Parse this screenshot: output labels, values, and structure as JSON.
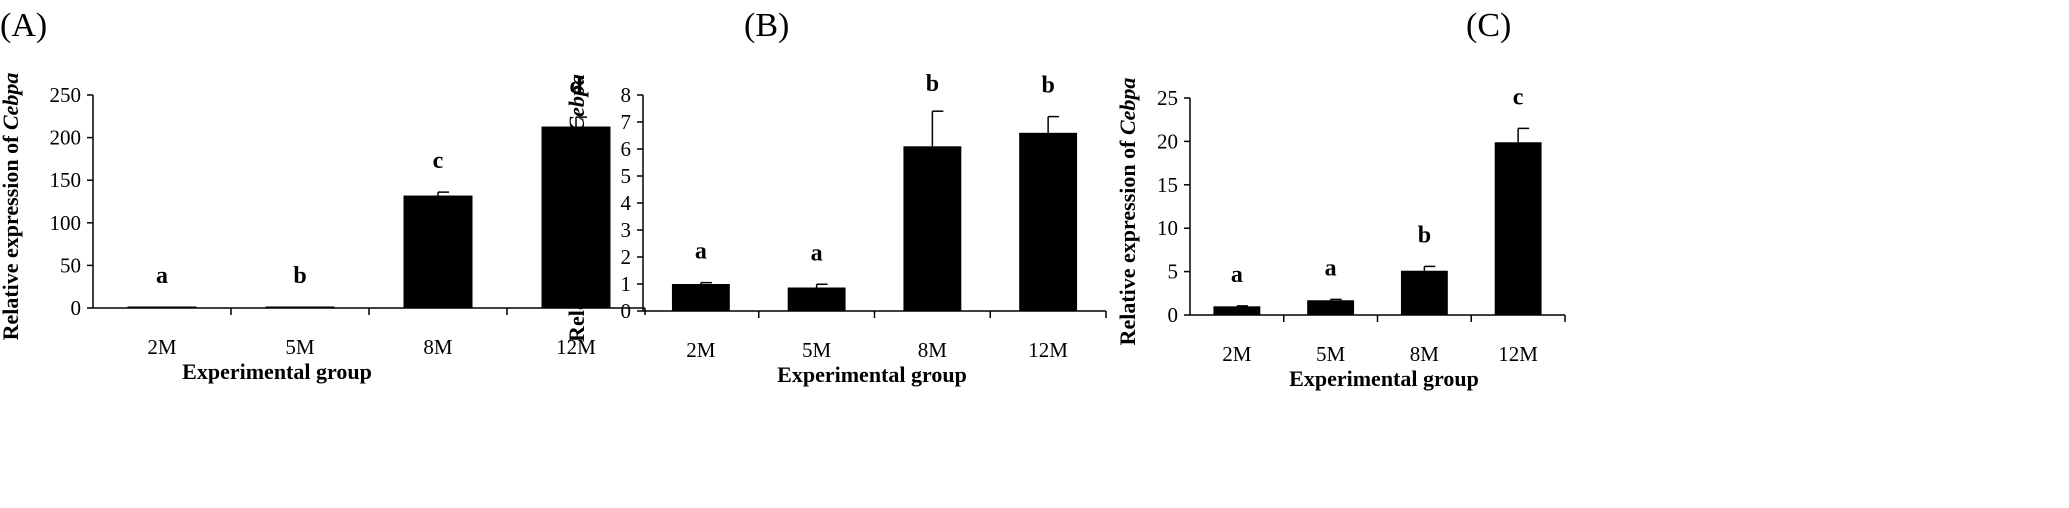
{
  "chart_data": [
    {
      "panel": "(A)",
      "type": "bar",
      "categories": [
        "2M",
        "5M",
        "8M",
        "12M"
      ],
      "values": [
        1,
        1,
        132,
        213
      ],
      "errors": [
        0.5,
        0.5,
        4,
        11
      ],
      "significance": [
        "a",
        "b",
        "c",
        "d"
      ],
      "xlabel": "Experimental group",
      "ylabel_prefix": "Relative expression of ",
      "ylabel_gene": "Cebpa",
      "ylim": [
        0,
        250
      ],
      "yticks": [
        "0",
        "50",
        "100",
        "150",
        "200",
        "250"
      ],
      "grid": false,
      "bar_color": "#000000"
    },
    {
      "panel": "(B)",
      "type": "bar",
      "categories": [
        "2M",
        "5M",
        "8M",
        "12M"
      ],
      "values": [
        1.0,
        0.87,
        6.1,
        6.6
      ],
      "errors": [
        0.05,
        0.12,
        1.3,
        0.6
      ],
      "significance": [
        "a",
        "a",
        "b",
        "b"
      ],
      "xlabel": "Experimental group",
      "ylabel_prefix": "Relative expression of ",
      "ylabel_gene": "Cebpa",
      "ylim": [
        0,
        8
      ],
      "yticks": [
        "0",
        "1",
        "2",
        "3",
        "4",
        "5",
        "6",
        "7",
        "8"
      ],
      "grid": false,
      "bar_color": "#000000"
    },
    {
      "panel": "(C)",
      "type": "bar",
      "categories": [
        "2M",
        "5M",
        "8M",
        "12M"
      ],
      "values": [
        1.0,
        1.7,
        5.1,
        19.9
      ],
      "errors": [
        0.05,
        0.1,
        0.5,
        1.6
      ],
      "significance": [
        "a",
        "a",
        "b",
        "c"
      ],
      "xlabel": "Experimental group",
      "ylabel_prefix": "Relative expression of ",
      "ylabel_gene": "Cebpa",
      "ylim": [
        0,
        25
      ],
      "yticks": [
        "0",
        "5",
        "10",
        "15",
        "20",
        "25"
      ],
      "grid": false,
      "bar_color": "#000000"
    }
  ]
}
